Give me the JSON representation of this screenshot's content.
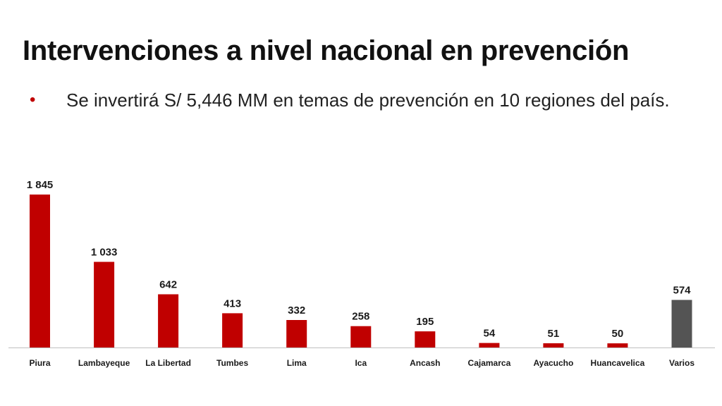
{
  "slide": {
    "title": "Intervenciones a nivel nacional en prevención",
    "bullet": {
      "marker": "•",
      "text": "Se invertirá S/ 5,446 MM en temas de prevención en 10 regiones del país."
    }
  },
  "chart_data": {
    "type": "bar",
    "title": "",
    "xlabel": "",
    "ylabel": "",
    "ylim": [
      0,
      1845
    ],
    "grid": false,
    "legend": "none",
    "categories": [
      "Piura",
      "Lambayeque",
      "La Libertad",
      "Tumbes",
      "Lima",
      "Ica",
      "Ancash",
      "Cajamarca",
      "Ayacucho",
      "Huancavelica",
      "Varios"
    ],
    "values": [
      1845,
      1033,
      642,
      413,
      332,
      258,
      195,
      54,
      51,
      50,
      574
    ],
    "data_labels": [
      "1 845",
      "1 033",
      "642",
      "413",
      "332",
      "258",
      "195",
      "54",
      "51",
      "50",
      "574"
    ],
    "colors": {
      "regions": "#c00000",
      "varios": "#545454",
      "axis": "#bfbfbf",
      "text": "#1a1a1a"
    },
    "bar_colors": [
      "#c00000",
      "#c00000",
      "#c00000",
      "#c00000",
      "#c00000",
      "#c00000",
      "#c00000",
      "#c00000",
      "#c00000",
      "#c00000",
      "#545454"
    ]
  }
}
